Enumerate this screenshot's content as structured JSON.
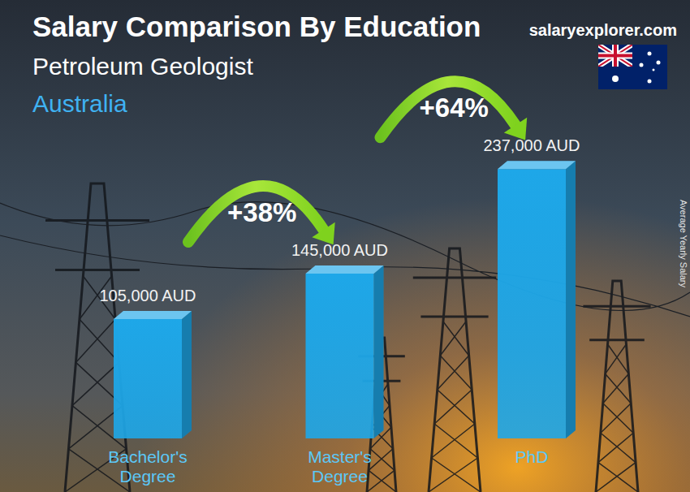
{
  "chart_data": {
    "type": "bar",
    "title": "Salary Comparison By Education",
    "subtitle": "Petroleum Geologist",
    "location": "Australia",
    "source": "salaryexplorer.com",
    "ylabel": "Average Yearly Salary",
    "categories": [
      "Bachelor's Degree",
      "Master's Degree",
      "PhD"
    ],
    "values": [
      105000,
      145000,
      237000
    ],
    "value_labels": [
      "105,000 AUD",
      "145,000 AUD",
      "237,000 AUD"
    ],
    "annotations": [
      "+38%",
      "+64%"
    ],
    "color": "#1ea7e8",
    "ylim": [
      0,
      300000
    ],
    "data_labels": true,
    "tick_labels": "x",
    "grid": false
  }
}
